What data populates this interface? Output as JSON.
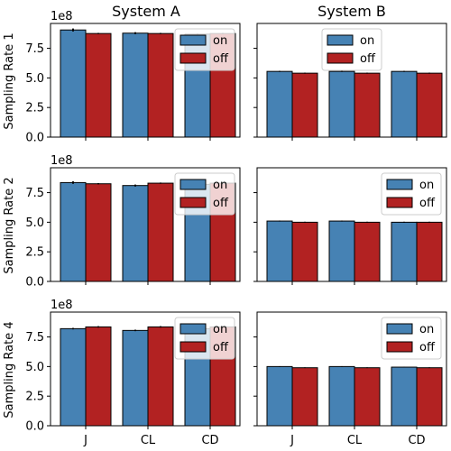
{
  "chart_data": {
    "type": "bar",
    "column_titles": [
      "System A",
      "System B"
    ],
    "row_labels": [
      "Sampling Rate 1",
      "Sampling Rate 2",
      "Sampling Rate 4"
    ],
    "categories": [
      "J",
      "CL",
      "CD"
    ],
    "series_names": [
      "on",
      "off"
    ],
    "colors": {
      "on": "#4682b4",
      "off": "#b22222"
    },
    "y_tick_labels": [
      "0.0",
      "2.5",
      "5.0",
      "7.5"
    ],
    "y_ticks": [
      0,
      2.5,
      5.0,
      7.5
    ],
    "ylim": [
      0,
      9.6
    ],
    "y_offset_label": "1e8",
    "sharey": "row",
    "legend_loc": "top-right",
    "panels": [
      {
        "row": 0,
        "col": 0,
        "show_offset": true,
        "series": [
          {
            "name": "on",
            "values": [
              9.05,
              8.78,
              8.7
            ],
            "errors": [
              0.12,
              0.08,
              0.05
            ]
          },
          {
            "name": "off",
            "values": [
              8.75,
              8.75,
              8.75
            ],
            "errors": [
              0.05,
              0.05,
              0.05
            ]
          }
        ]
      },
      {
        "row": 0,
        "col": 1,
        "show_offset": false,
        "series": [
          {
            "name": "on",
            "values": [
              5.55,
              5.55,
              5.55
            ],
            "errors": [
              0.04,
              0.04,
              0.04
            ]
          },
          {
            "name": "off",
            "values": [
              5.4,
              5.4,
              5.4
            ],
            "errors": [
              0.04,
              0.04,
              0.04
            ]
          }
        ]
      },
      {
        "row": 1,
        "col": 0,
        "show_offset": true,
        "series": [
          {
            "name": "on",
            "values": [
              8.35,
              8.1,
              8.2
            ],
            "errors": [
              0.1,
              0.08,
              0.05
            ]
          },
          {
            "name": "off",
            "values": [
              8.25,
              8.3,
              8.3
            ],
            "errors": [
              0.05,
              0.05,
              0.05
            ]
          }
        ]
      },
      {
        "row": 1,
        "col": 1,
        "show_offset": false,
        "series": [
          {
            "name": "on",
            "values": [
              5.1,
              5.1,
              5.0
            ],
            "errors": [
              0.04,
              0.04,
              0.04
            ]
          },
          {
            "name": "off",
            "values": [
              5.0,
              5.0,
              5.0
            ],
            "errors": [
              0.04,
              0.04,
              0.04
            ]
          }
        ]
      },
      {
        "row": 2,
        "col": 0,
        "show_offset": true,
        "series": [
          {
            "name": "on",
            "values": [
              8.2,
              8.05,
              8.2
            ],
            "errors": [
              0.06,
              0.06,
              0.05
            ]
          },
          {
            "name": "off",
            "values": [
              8.35,
              8.35,
              8.35
            ],
            "errors": [
              0.06,
              0.06,
              0.05
            ]
          }
        ]
      },
      {
        "row": 2,
        "col": 1,
        "show_offset": false,
        "series": [
          {
            "name": "on",
            "values": [
              5.0,
              5.0,
              4.95
            ],
            "errors": [
              0.03,
              0.03,
              0.03
            ]
          },
          {
            "name": "off",
            "values": [
              4.9,
              4.9,
              4.9
            ],
            "errors": [
              0.03,
              0.03,
              0.03
            ]
          }
        ]
      }
    ]
  }
}
